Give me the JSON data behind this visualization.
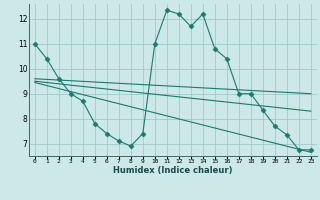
{
  "line1_x": [
    0,
    1,
    2,
    3,
    4,
    5,
    6,
    7,
    8,
    9,
    10,
    11,
    12,
    13,
    14,
    15,
    16,
    17,
    18,
    19,
    20,
    21,
    22,
    23
  ],
  "line1_y": [
    11.0,
    10.4,
    9.6,
    9.0,
    8.7,
    7.8,
    7.4,
    7.1,
    6.9,
    7.4,
    11.0,
    12.35,
    12.2,
    11.7,
    12.2,
    10.8,
    10.4,
    9.0,
    9.0,
    8.35,
    7.7,
    7.35,
    6.75,
    6.75
  ],
  "line2_x": [
    0,
    23
  ],
  "line2_y": [
    9.6,
    9.0
  ],
  "line3_x": [
    0,
    23
  ],
  "line3_y": [
    9.45,
    6.65
  ],
  "line4_x": [
    0,
    23
  ],
  "line4_y": [
    9.5,
    8.3
  ],
  "line_color": "#1a7a6e",
  "bg_color": "#cce8e8",
  "grid_color": "#a0c8c8",
  "xlabel": "Humidex (Indice chaleur)",
  "xlim": [
    -0.5,
    23.5
  ],
  "ylim": [
    6.5,
    12.6
  ],
  "yticks": [
    7,
    8,
    9,
    10,
    11,
    12
  ],
  "xticks": [
    0,
    1,
    2,
    3,
    4,
    5,
    6,
    7,
    8,
    9,
    10,
    11,
    12,
    13,
    14,
    15,
    16,
    17,
    18,
    19,
    20,
    21,
    22,
    23
  ],
  "xtick_labels": [
    "0",
    "1",
    "2",
    "3",
    "4",
    "5",
    "6",
    "7",
    "8",
    "9",
    "10",
    "11",
    "12",
    "13",
    "14",
    "15",
    "16",
    "17",
    "18",
    "19",
    "20",
    "21",
    "22",
    "23"
  ],
  "marker": "D",
  "markersize": 2.5,
  "linewidth": 0.8
}
